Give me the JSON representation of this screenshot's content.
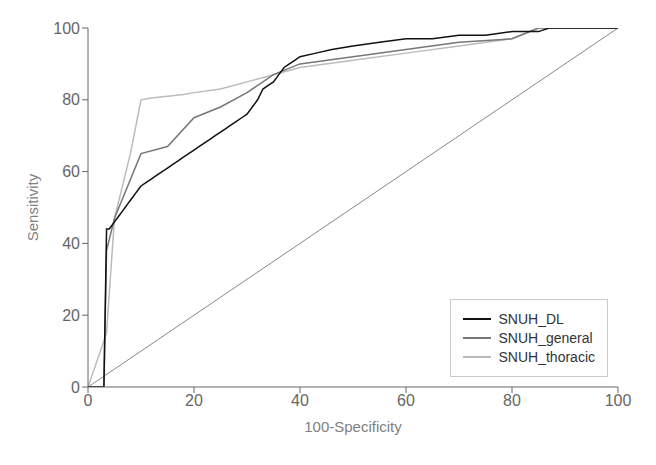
{
  "chart_data": {
    "type": "line",
    "xlabel": "100-Specificity",
    "ylabel": "Sensitivity",
    "xlim": [
      0,
      100
    ],
    "ylim": [
      0,
      100
    ],
    "xticks": [
      0,
      20,
      40,
      60,
      80,
      100
    ],
    "yticks": [
      0,
      20,
      40,
      60,
      80,
      100
    ],
    "legend": "lower right",
    "grid": false,
    "reference_line": {
      "x": [
        0,
        100
      ],
      "values": [
        0,
        100
      ],
      "color": "#888888"
    },
    "series": [
      {
        "name": "SNUH_DL",
        "color": "#111111",
        "x": [
          0,
          3,
          3.5,
          4,
          4.5,
          5,
          5.5,
          6,
          6.5,
          7,
          7.5,
          8,
          8.5,
          9,
          9.5,
          10,
          11,
          12,
          13,
          14,
          15,
          16,
          17,
          18,
          19,
          20,
          21,
          22,
          23,
          24,
          25,
          26,
          27,
          28,
          29,
          30,
          31,
          32,
          33,
          34,
          35,
          36,
          37,
          38,
          39,
          40,
          43,
          46,
          50,
          55,
          60,
          65,
          70,
          75,
          80,
          85,
          87,
          100
        ],
        "values": [
          0,
          0,
          44,
          44,
          45,
          46,
          47,
          48,
          49,
          50,
          51,
          52,
          53,
          54,
          55,
          56,
          57,
          58,
          59,
          60,
          61,
          62,
          63,
          64,
          65,
          66,
          67,
          68,
          69,
          70,
          71,
          72,
          73,
          74,
          75,
          76,
          78,
          80,
          83,
          84,
          85,
          87,
          89,
          90,
          91,
          92,
          93,
          94,
          95,
          96,
          97,
          97,
          98,
          98,
          99,
          99,
          100,
          100
        ]
      },
      {
        "name": "SNUH_general",
        "color": "#777777",
        "x": [
          0,
          3,
          3.5,
          5,
          10,
          15,
          20,
          25,
          30,
          35,
          40,
          50,
          60,
          70,
          80,
          85,
          100
        ],
        "values": [
          0,
          0,
          38,
          47,
          65,
          67,
          75,
          78,
          82,
          87,
          90,
          92,
          94,
          96,
          97,
          100,
          100
        ]
      },
      {
        "name": "SNUH_thoracic",
        "color": "#bbbbbb",
        "x": [
          0,
          3.5,
          5,
          8,
          10,
          12,
          15,
          18,
          20,
          25,
          30,
          35,
          40,
          50,
          60,
          70,
          80,
          85,
          100
        ],
        "values": [
          0,
          15,
          47,
          65,
          80,
          80.5,
          81,
          81.5,
          82,
          83,
          85,
          87,
          89,
          91,
          93,
          95,
          97,
          100,
          100
        ]
      }
    ]
  }
}
